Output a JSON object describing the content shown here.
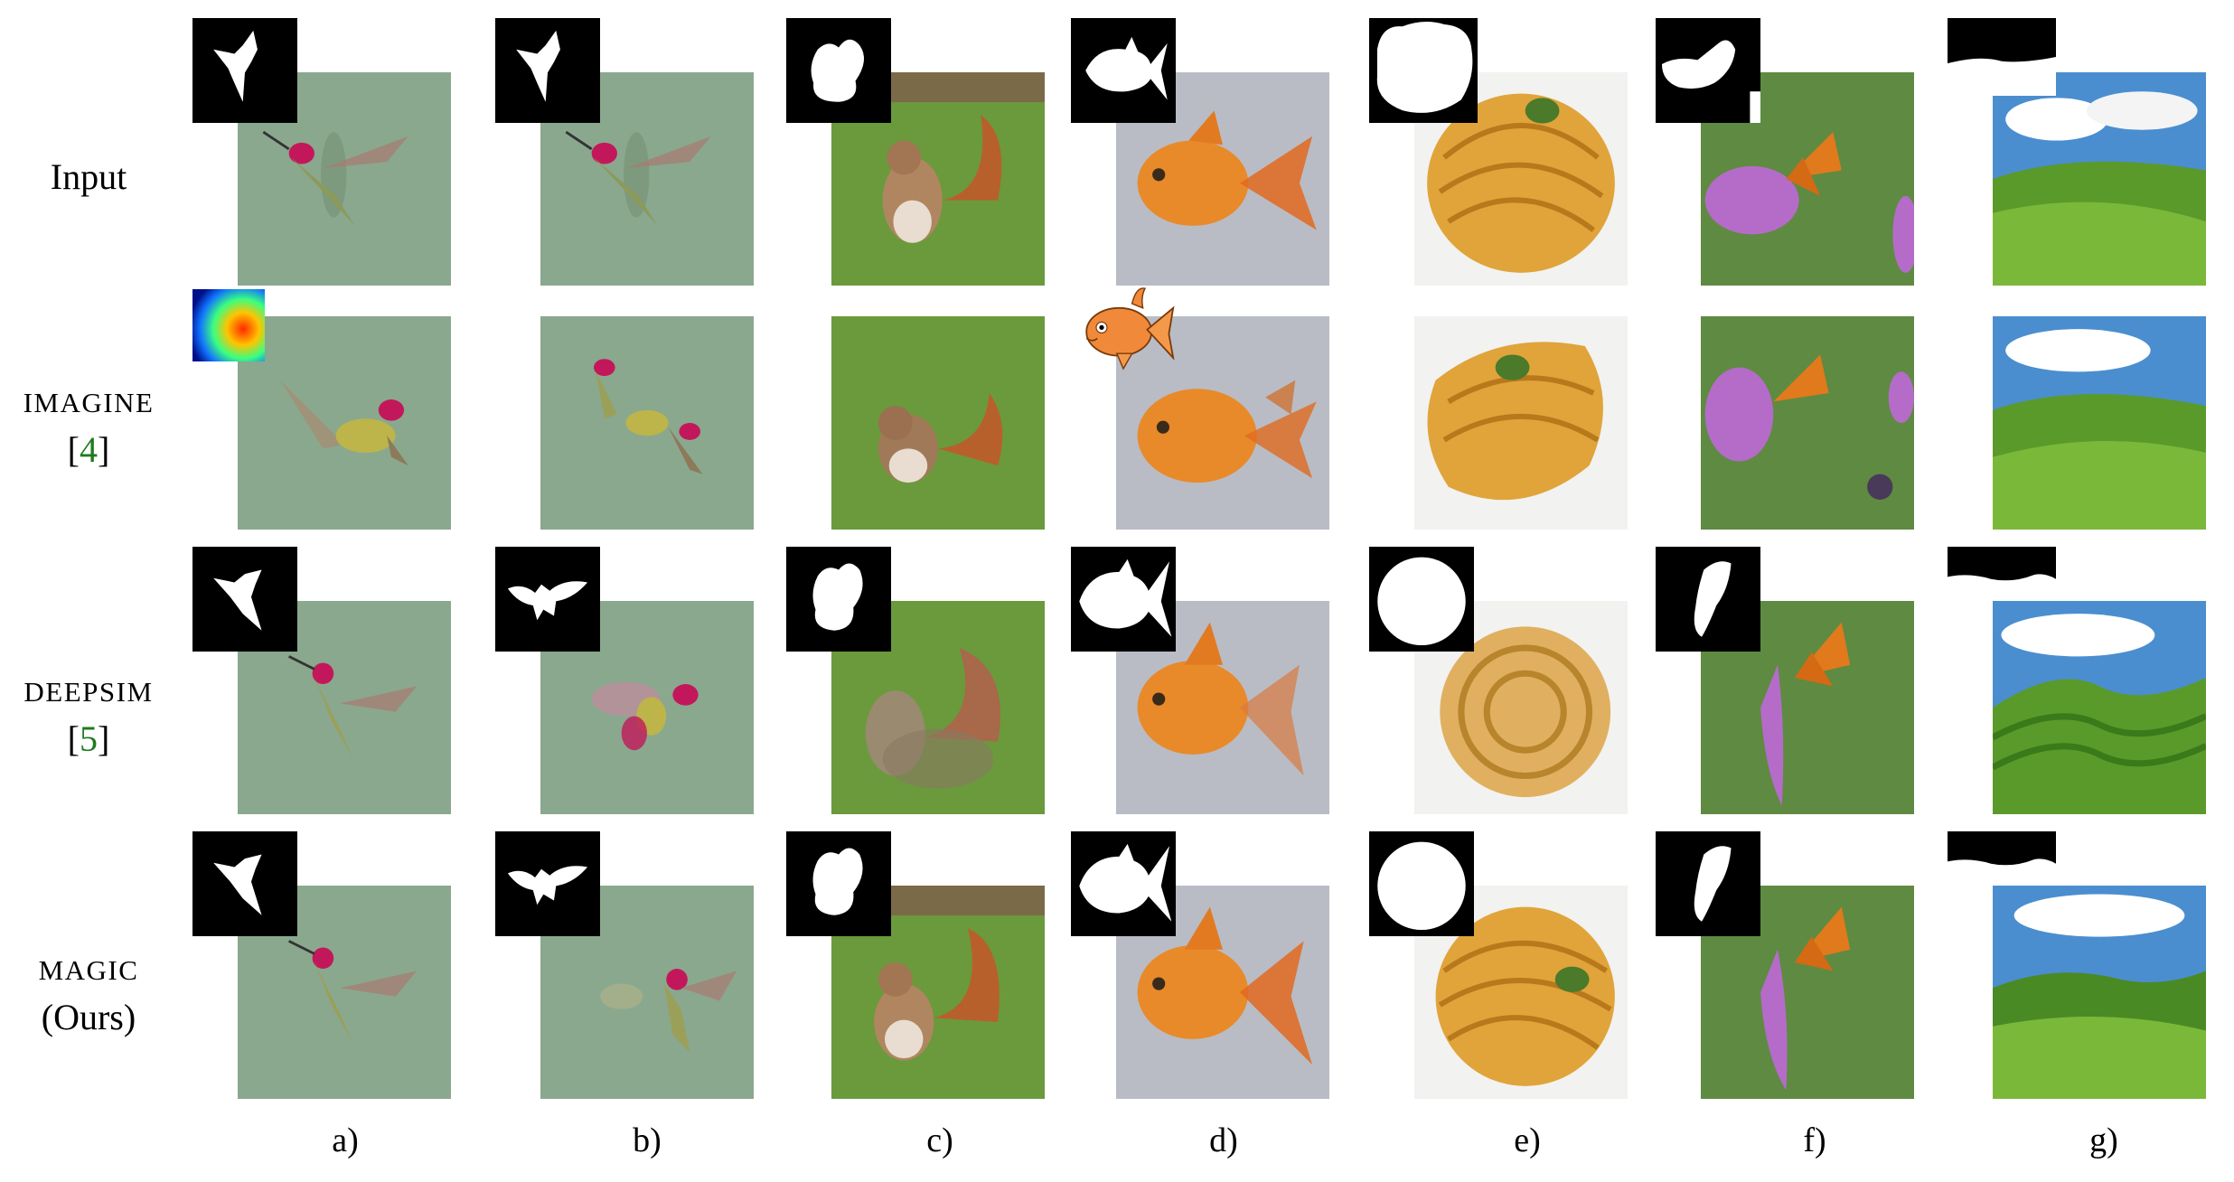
{
  "rows": [
    {
      "label": "Input",
      "cite": ""
    },
    {
      "label": "IMAGINE",
      "cite": "4"
    },
    {
      "label": "DEEPSIM",
      "cite": "5"
    },
    {
      "label": "MAGIC",
      "cite": "(Ours)"
    }
  ],
  "columns": [
    "a)",
    "b)",
    "c)",
    "d)",
    "e)",
    "f)",
    "g)"
  ],
  "colors": {
    "citation": "#1f7a1f",
    "mask_background": "#000000",
    "mask_foreground": "#ffffff"
  }
}
